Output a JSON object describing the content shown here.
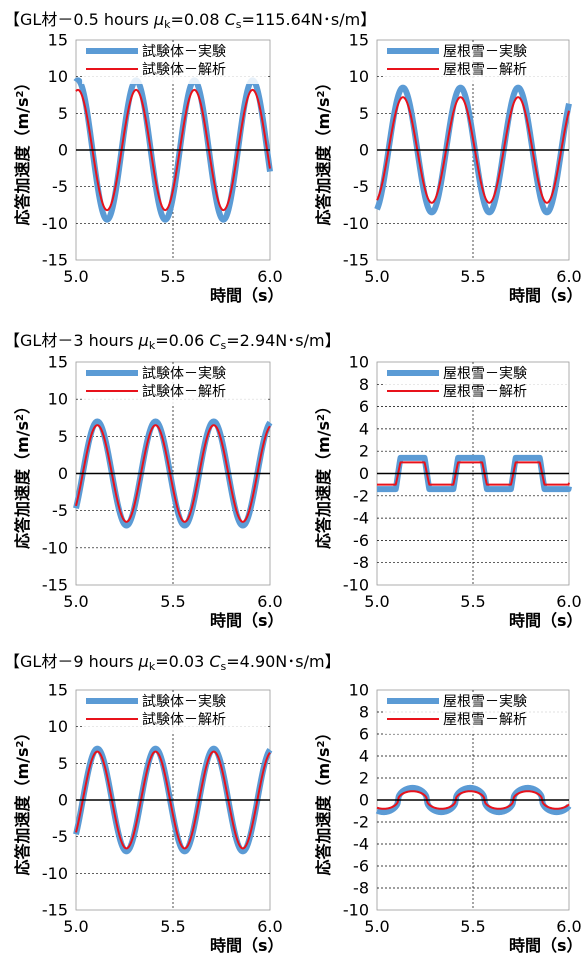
{
  "sections": [
    {
      "title_prefix": "【GL材－0.5 hours",
      "mu_symbol": "μ",
      "mu_sub": "k",
      "mu_value": "=0.08",
      "c_symbol": "C",
      "c_sub": "s",
      "c_value": "=115.64N･s/m】"
    },
    {
      "title_prefix": "【GL材－3 hours",
      "mu_symbol": "μ",
      "mu_sub": "k",
      "mu_value": "=0.06",
      "c_symbol": "C",
      "c_sub": "s",
      "c_value": "=2.94N･s/m】"
    },
    {
      "title_prefix": "【GL材－9 hours",
      "mu_symbol": "μ",
      "mu_sub": "k",
      "mu_value": "=0.03",
      "c_symbol": "C",
      "c_sub": "s",
      "c_value": "=4.90N･s/m】"
    }
  ],
  "ylabel_main": "応答加速度（m/s",
  "ylabel_sup": "2",
  "ylabel_close": "）",
  "colors": {
    "experiment": "#5b9bd5",
    "analysis": "#e8121b",
    "axis": "#000000",
    "grid": "#000000"
  },
  "chart_data": [
    {
      "id": "c1",
      "type": "line",
      "xlabel": "時間（s）",
      "xlim": [
        5.0,
        6.0
      ],
      "ylim": [
        -15,
        15
      ],
      "yticks": [
        -15,
        -10,
        -5,
        0,
        5,
        10,
        15
      ],
      "xticks": [
        "5.0",
        "5.5",
        "6.0"
      ],
      "legend_position": "top-left",
      "series": [
        {
          "name": "試験体－実験",
          "amplitude": 9.5,
          "period": 0.3,
          "phase_x": 5.235,
          "shape": "sine"
        },
        {
          "name": "試験体－解析",
          "amplitude": 8.2,
          "period": 0.3,
          "phase_x": 5.235,
          "shape": "sine"
        }
      ]
    },
    {
      "id": "c2",
      "type": "line",
      "xlabel": "時間（s）",
      "xlim": [
        5.0,
        6.0
      ],
      "ylim": [
        -15,
        15
      ],
      "yticks": [
        -15,
        -10,
        -5,
        0,
        5,
        10,
        15
      ],
      "xticks": [
        "5.0",
        "5.5",
        "6.0"
      ],
      "legend_position": "top-left",
      "series": [
        {
          "name": "屋根雪－実験",
          "amplitude": 8.5,
          "period": 0.3,
          "phase_x": 5.06,
          "shape": "sine"
        },
        {
          "name": "屋根雪－解析",
          "amplitude": 7.2,
          "period": 0.3,
          "phase_x": 5.06,
          "shape": "sine"
        }
      ]
    },
    {
      "id": "c3",
      "type": "line",
      "xlabel": "時間（s）",
      "xlim": [
        5.0,
        6.0
      ],
      "ylim": [
        -15,
        15
      ],
      "yticks": [
        -15,
        -10,
        -5,
        0,
        5,
        10,
        15
      ],
      "xticks": [
        "5.0",
        "5.5",
        "6.0"
      ],
      "legend_position": "top-left",
      "series": [
        {
          "name": "試験体－実験",
          "amplitude": 7.0,
          "period": 0.3,
          "phase_x": 5.035,
          "shape": "sine"
        },
        {
          "name": "試験体－解析",
          "amplitude": 6.5,
          "period": 0.3,
          "phase_x": 5.035,
          "shape": "sine"
        }
      ]
    },
    {
      "id": "c4",
      "type": "line",
      "xlabel": "時間（s）",
      "xlim": [
        5.0,
        6.0
      ],
      "ylim": [
        -10,
        10
      ],
      "yticks": [
        -10,
        -8,
        -6,
        -4,
        -2,
        0,
        2,
        4,
        6,
        8,
        10
      ],
      "xticks": [
        "5.0",
        "5.5",
        "6.0"
      ],
      "legend_position": "top-left",
      "series": [
        {
          "name": "屋根雪－実験",
          "amplitude": 1.4,
          "period": 0.3,
          "phase_x": 5.11,
          "shape": "square"
        },
        {
          "name": "屋根雪－解析",
          "amplitude": 1.0,
          "period": 0.3,
          "phase_x": 5.11,
          "shape": "square"
        }
      ]
    },
    {
      "id": "c5",
      "type": "line",
      "xlabel": "時間（s）",
      "xlim": [
        5.0,
        6.0
      ],
      "ylim": [
        -15,
        15
      ],
      "yticks": [
        -15,
        -10,
        -5,
        0,
        5,
        10,
        15
      ],
      "xticks": [
        "5.0",
        "5.5",
        "6.0"
      ],
      "legend_position": "top-left",
      "series": [
        {
          "name": "試験体－実験",
          "amplitude": 7.0,
          "period": 0.3,
          "phase_x": 5.035,
          "shape": "sine"
        },
        {
          "name": "試験体－解析",
          "amplitude": 6.6,
          "period": 0.3,
          "phase_x": 5.035,
          "shape": "sine"
        }
      ]
    },
    {
      "id": "c6",
      "type": "line",
      "xlabel": "時間（s）",
      "xlim": [
        5.0,
        6.0
      ],
      "ylim": [
        -10,
        10
      ],
      "yticks": [
        -10,
        -8,
        -6,
        -4,
        -2,
        0,
        2,
        4,
        6,
        8,
        10
      ],
      "xticks": [
        "5.0",
        "5.5",
        "6.0"
      ],
      "legend_position": "top-left",
      "series": [
        {
          "name": "屋根雪－実験",
          "amplitude": 1.1,
          "period": 0.3,
          "phase_x": 5.11,
          "shape": "rounded"
        },
        {
          "name": "屋根雪－解析",
          "amplitude": 0.8,
          "period": 0.3,
          "phase_x": 5.11,
          "shape": "rounded"
        }
      ]
    }
  ]
}
